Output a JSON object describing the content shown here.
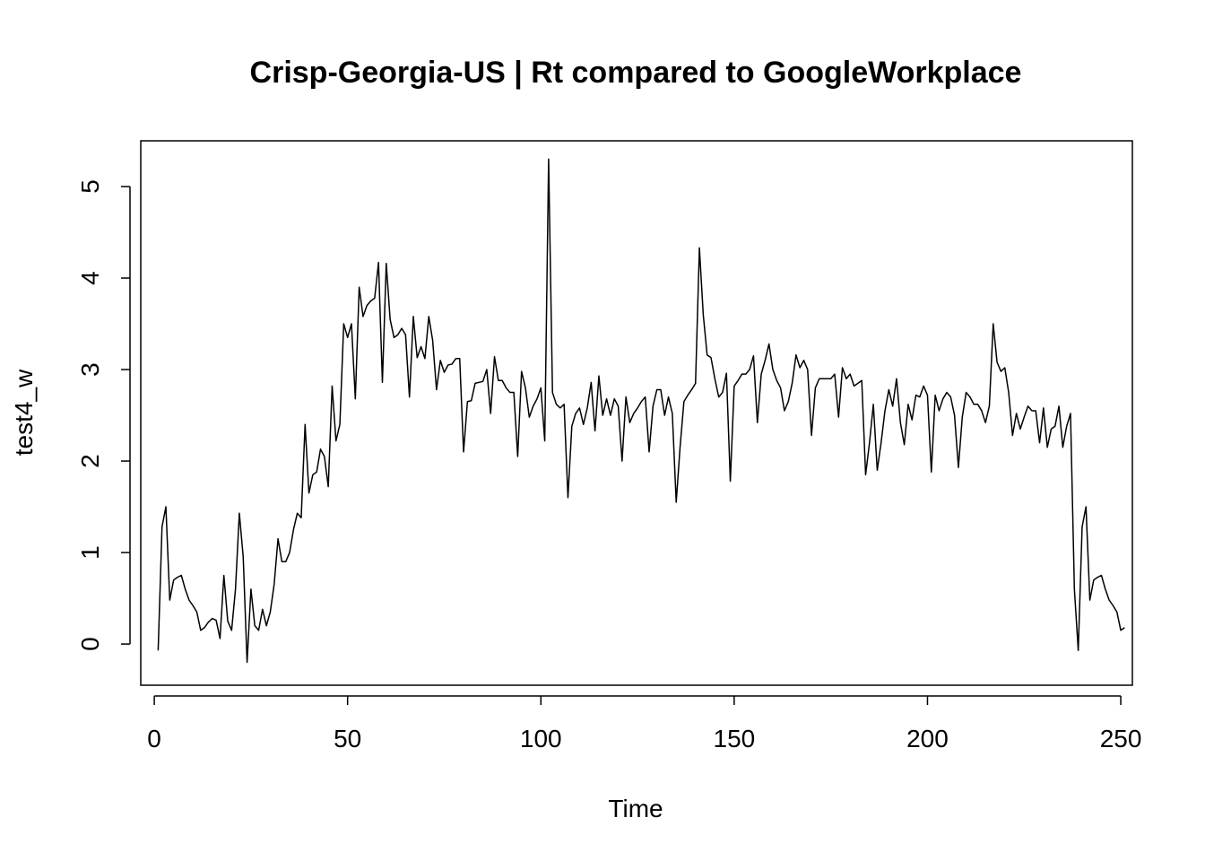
{
  "chart_data": {
    "type": "line",
    "title": "Crisp-Georgia-US | Rt compared to GoogleWorkplace",
    "xlabel": "Time",
    "ylabel": "test4_w",
    "xlim": [
      -3.5,
      253
    ],
    "ylim": [
      -0.45,
      5.5
    ],
    "x_ticks": [
      0,
      50,
      100,
      150,
      200,
      250
    ],
    "y_ticks": [
      0,
      1,
      2,
      3,
      4,
      5
    ],
    "x_tick_labels": [
      "0",
      "50",
      "100",
      "150",
      "200",
      "250"
    ],
    "y_tick_labels": [
      "0",
      "1",
      "2",
      "3",
      "4",
      "5"
    ],
    "grid": false,
    "series": [
      {
        "name": "test4_w",
        "color": "#000000",
        "x_start": 1,
        "values": [
          -0.07,
          1.28,
          1.5,
          0.48,
          0.7,
          0.73,
          0.75,
          0.6,
          0.48,
          0.42,
          0.35,
          0.15,
          0.18,
          0.24,
          0.28,
          0.26,
          0.06,
          0.75,
          0.25,
          0.15,
          0.6,
          1.43,
          0.95,
          -0.2,
          0.6,
          0.2,
          0.15,
          0.38,
          0.2,
          0.35,
          0.65,
          1.15,
          0.9,
          0.9,
          1.0,
          1.25,
          1.43,
          1.38,
          2.4,
          1.65,
          1.85,
          1.88,
          2.13,
          2.05,
          1.72,
          2.82,
          2.22,
          2.4,
          3.5,
          3.35,
          3.5,
          2.68,
          3.9,
          3.58,
          3.7,
          3.75,
          3.78,
          4.17,
          2.86,
          4.16,
          3.55,
          3.35,
          3.38,
          3.45,
          3.38,
          2.7,
          3.58,
          3.13,
          3.25,
          3.12,
          3.58,
          3.32,
          2.78,
          3.1,
          2.97,
          3.05,
          3.06,
          3.12,
          3.12,
          2.1,
          2.65,
          2.66,
          2.85,
          2.86,
          2.87,
          3.0,
          2.52,
          3.14,
          2.88,
          2.88,
          2.8,
          2.75,
          2.75,
          2.05,
          2.98,
          2.8,
          2.48,
          2.6,
          2.68,
          2.8,
          2.22,
          5.3,
          2.75,
          2.62,
          2.58,
          2.62,
          1.6,
          2.38,
          2.52,
          2.58,
          2.4,
          2.58,
          2.86,
          2.33,
          2.93,
          2.5,
          2.68,
          2.5,
          2.68,
          2.6,
          2.0,
          2.7,
          2.42,
          2.52,
          2.58,
          2.65,
          2.7,
          2.1,
          2.6,
          2.78,
          2.78,
          2.5,
          2.7,
          2.52,
          1.55,
          2.15,
          2.65,
          2.72,
          2.78,
          2.85,
          4.33,
          3.6,
          3.16,
          3.13,
          2.9,
          2.7,
          2.75,
          2.96,
          1.78,
          2.82,
          2.88,
          2.95,
          2.95,
          3.0,
          3.15,
          2.42,
          2.95,
          3.1,
          3.28,
          3.0,
          2.88,
          2.8,
          2.55,
          2.65,
          2.85,
          3.16,
          3.02,
          3.1,
          3.0,
          2.28,
          2.8,
          2.9,
          2.9,
          2.9,
          2.9,
          2.95,
          2.48,
          3.02,
          2.9,
          2.95,
          2.82,
          2.85,
          2.88,
          1.85,
          2.2,
          2.62,
          1.9,
          2.2,
          2.55,
          2.78,
          2.6,
          2.9,
          2.42,
          2.18,
          2.62,
          2.45,
          2.72,
          2.7,
          2.82,
          2.72,
          1.88,
          2.72,
          2.55,
          2.68,
          2.75,
          2.7,
          2.5,
          1.93,
          2.48,
          2.75,
          2.7,
          2.62,
          2.62,
          2.55,
          2.42,
          2.6,
          3.5,
          3.08,
          2.98,
          3.02,
          2.75,
          2.28,
          2.52,
          2.35,
          2.48,
          2.6,
          2.55,
          2.55,
          2.2,
          2.58,
          2.15,
          2.35,
          2.38,
          2.6,
          2.15,
          2.38,
          2.52,
          0.6,
          -0.07,
          1.28,
          1.5,
          0.48,
          0.7,
          0.73,
          0.75,
          0.6,
          0.48,
          0.42,
          0.35,
          0.15,
          0.18
        ]
      }
    ]
  }
}
